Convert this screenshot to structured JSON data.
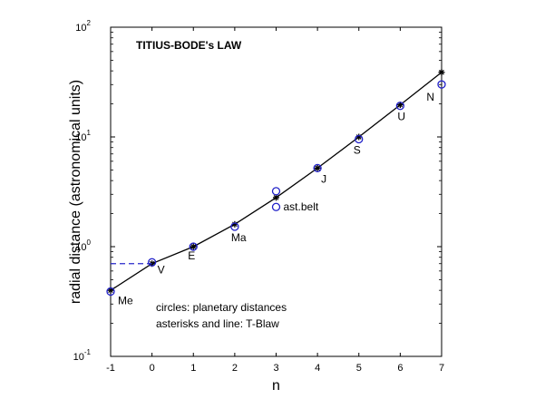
{
  "chart_data": {
    "type": "line",
    "title": "TITIUS-BODE's LAW",
    "xlabel": "n",
    "ylabel": "radial distance (astronomical units)",
    "xlim": [
      -1,
      7
    ],
    "ylim": [
      0.1,
      100
    ],
    "yscale": "log",
    "x_ticks": [
      "-1",
      "0",
      "1",
      "2",
      "3",
      "4",
      "5",
      "6",
      "7"
    ],
    "y_ticks": [
      {
        "base": "10",
        "exp": "-1",
        "value": 0.1
      },
      {
        "base": "10",
        "exp": "0",
        "value": 1
      },
      {
        "base": "10",
        "exp": "1",
        "value": 10
      },
      {
        "base": "10",
        "exp": "2",
        "value": 100
      }
    ],
    "series": [
      {
        "kind": "tb-law",
        "style": "asterisks and line",
        "color": "#000000",
        "points": [
          {
            "x": -1,
            "y": 0.4
          },
          {
            "x": 0,
            "y": 0.7
          },
          {
            "x": 1,
            "y": 1.0
          },
          {
            "x": 2,
            "y": 1.6
          },
          {
            "x": 3,
            "y": 2.8
          },
          {
            "x": 4,
            "y": 5.2
          },
          {
            "x": 5,
            "y": 10.0
          },
          {
            "x": 6,
            "y": 19.6
          },
          {
            "x": 7,
            "y": 38.8
          }
        ]
      },
      {
        "kind": "planets",
        "style": "circles",
        "color": "#1f1fc8",
        "points": [
          {
            "x": -1,
            "y": 0.39,
            "label": "Me"
          },
          {
            "x": 0,
            "y": 0.72,
            "label": "V"
          },
          {
            "x": 1,
            "y": 1.0,
            "label": "E"
          },
          {
            "x": 2,
            "y": 1.52,
            "label": "Ma"
          },
          {
            "x": 3,
            "y": 2.3,
            "label": "ast.belt"
          },
          {
            "x": 3,
            "y": 3.2,
            "label": ""
          },
          {
            "x": 4,
            "y": 5.2,
            "label": "J"
          },
          {
            "x": 5,
            "y": 9.54,
            "label": "S"
          },
          {
            "x": 6,
            "y": 19.2,
            "label": "U"
          },
          {
            "x": 7,
            "y": 30.1,
            "label": "N"
          }
        ]
      },
      {
        "kind": "dashed-reference",
        "style": "dashed",
        "color": "#2a2acc",
        "points": [
          {
            "x": -1,
            "y": 0.7
          },
          {
            "x": 0,
            "y": 0.7
          }
        ]
      }
    ],
    "annotations": [
      "circles: planetary distances",
      "asterisks and line: T-Blaw"
    ]
  }
}
